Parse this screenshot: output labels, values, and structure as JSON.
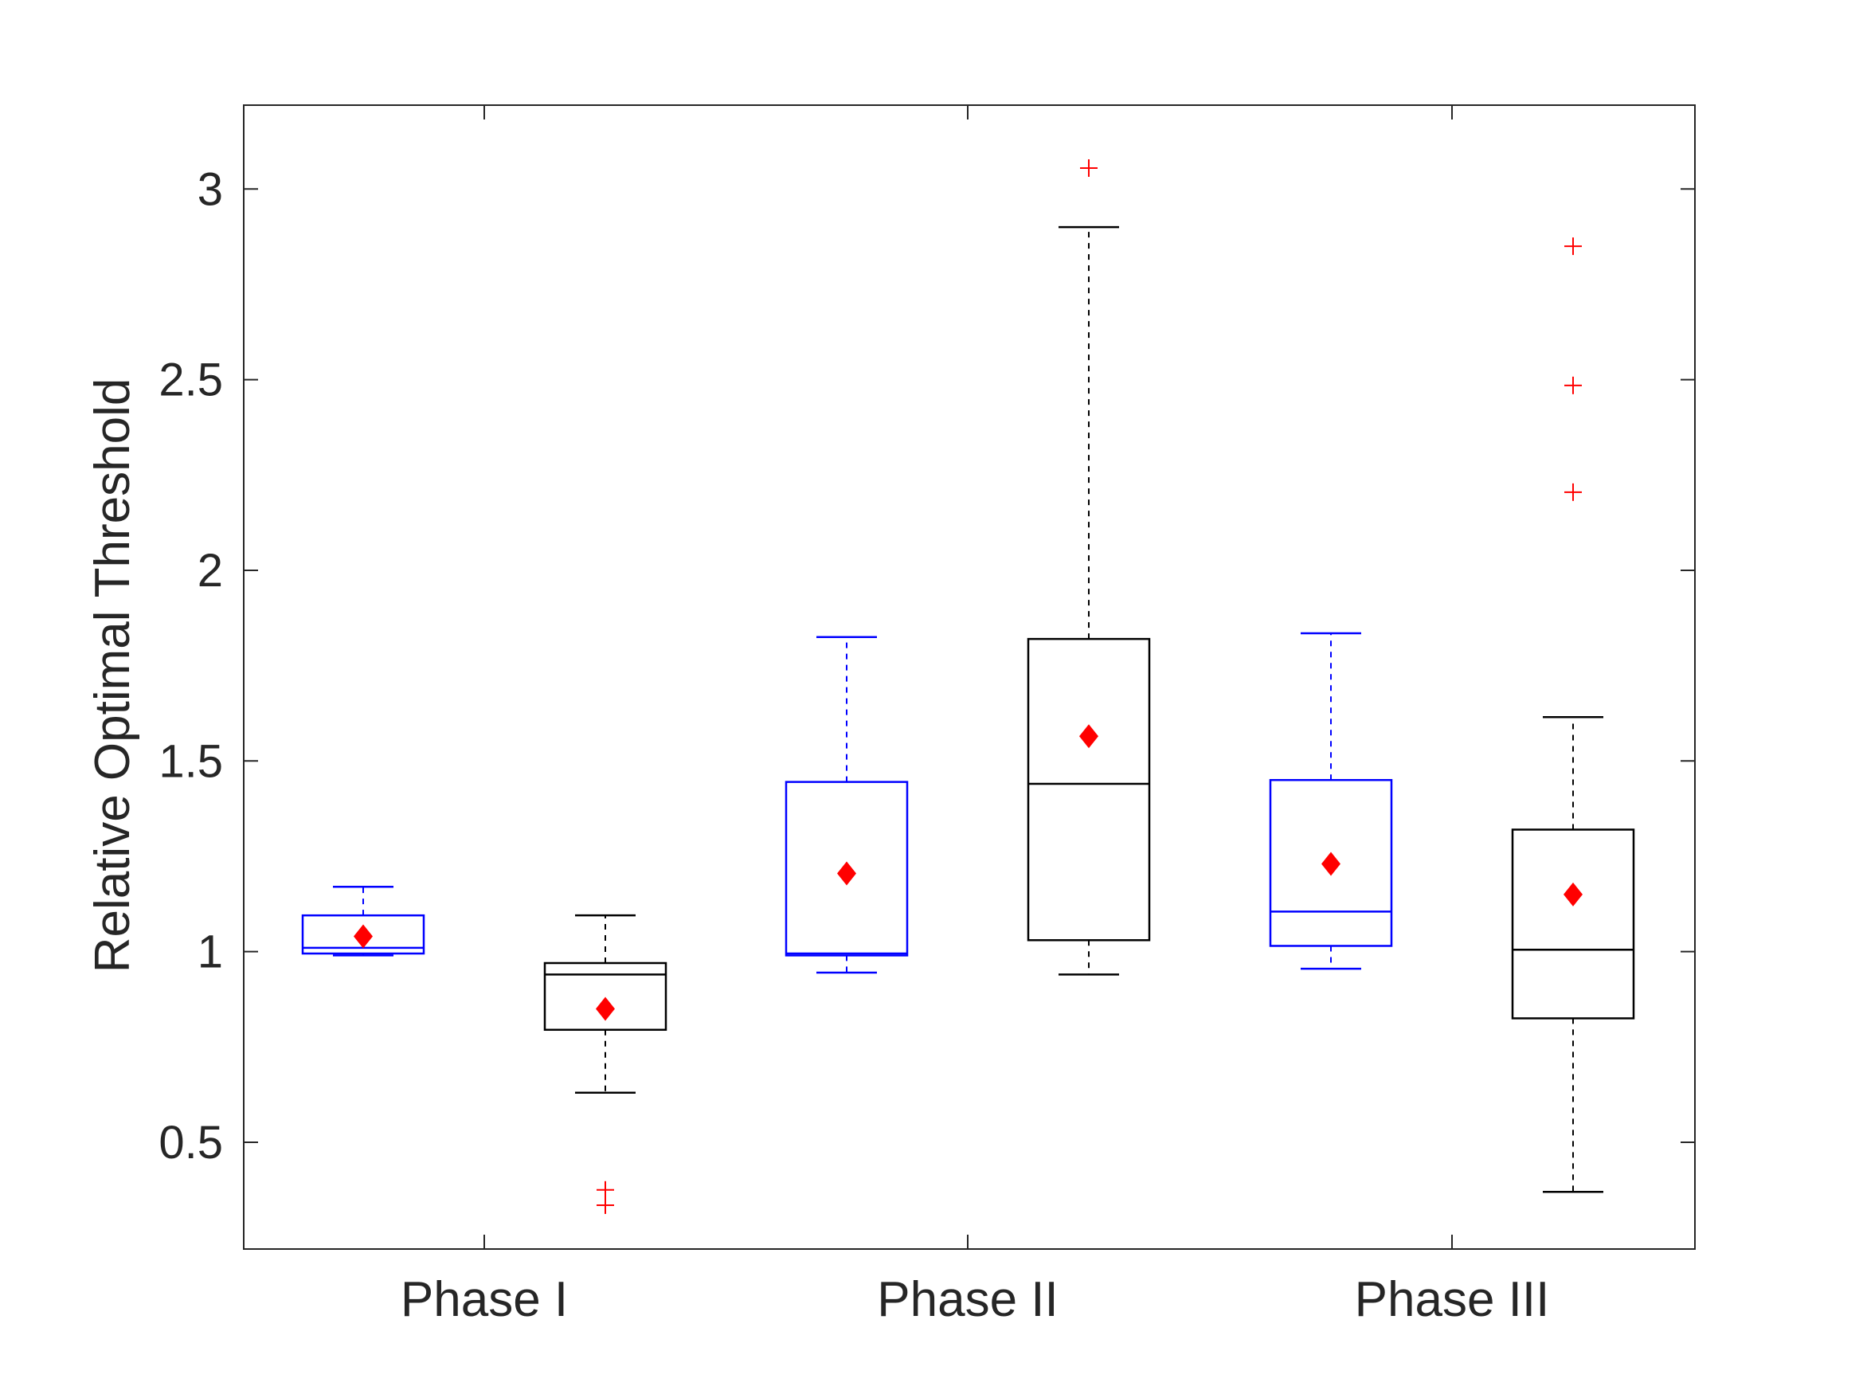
{
  "chart_data": {
    "type": "box",
    "title": "",
    "xlabel": "",
    "ylabel": "Relative Optimal Threshold",
    "ylim": [
      0.22,
      3.22
    ],
    "yticks": [
      0.5,
      1,
      1.5,
      2,
      2.5,
      3
    ],
    "ytick_labels": [
      "0.5",
      "1",
      "1.5",
      "2",
      "2.5",
      "3"
    ],
    "categories": [
      "Phase I",
      "Phase II",
      "Phase III"
    ],
    "colors": {
      "series_a": "#0000ff",
      "series_b": "#000000",
      "mean": "#ff0000",
      "outlier": "#ff0000",
      "axes": "#262626"
    },
    "boxes": [
      {
        "category": "Phase I",
        "series": "a",
        "whisker_low": 0.99,
        "q1": 0.995,
        "median": 1.01,
        "q3": 1.095,
        "whisker_high": 1.17,
        "mean": 1.04,
        "outliers": []
      },
      {
        "category": "Phase I",
        "series": "b",
        "whisker_low": 0.63,
        "q1": 0.795,
        "median": 0.94,
        "q3": 0.97,
        "whisker_high": 1.095,
        "mean": 0.85,
        "outliers": [
          0.375,
          0.335
        ]
      },
      {
        "category": "Phase II",
        "series": "a",
        "whisker_low": 0.945,
        "q1": 0.99,
        "median": 0.995,
        "q3": 1.445,
        "whisker_high": 1.825,
        "mean": 1.205,
        "outliers": []
      },
      {
        "category": "Phase II",
        "series": "b",
        "whisker_low": 0.94,
        "q1": 1.03,
        "median": 1.44,
        "q3": 1.82,
        "whisker_high": 2.9,
        "mean": 1.565,
        "outliers": [
          3.055
        ]
      },
      {
        "category": "Phase III",
        "series": "a",
        "whisker_low": 0.955,
        "q1": 1.015,
        "median": 1.105,
        "q3": 1.45,
        "whisker_high": 1.835,
        "mean": 1.23,
        "outliers": []
      },
      {
        "category": "Phase III",
        "series": "b",
        "whisker_low": 0.37,
        "q1": 0.825,
        "median": 1.005,
        "q3": 1.32,
        "whisker_high": 1.615,
        "mean": 1.15,
        "outliers": [
          2.85,
          2.485,
          2.205
        ]
      }
    ]
  }
}
